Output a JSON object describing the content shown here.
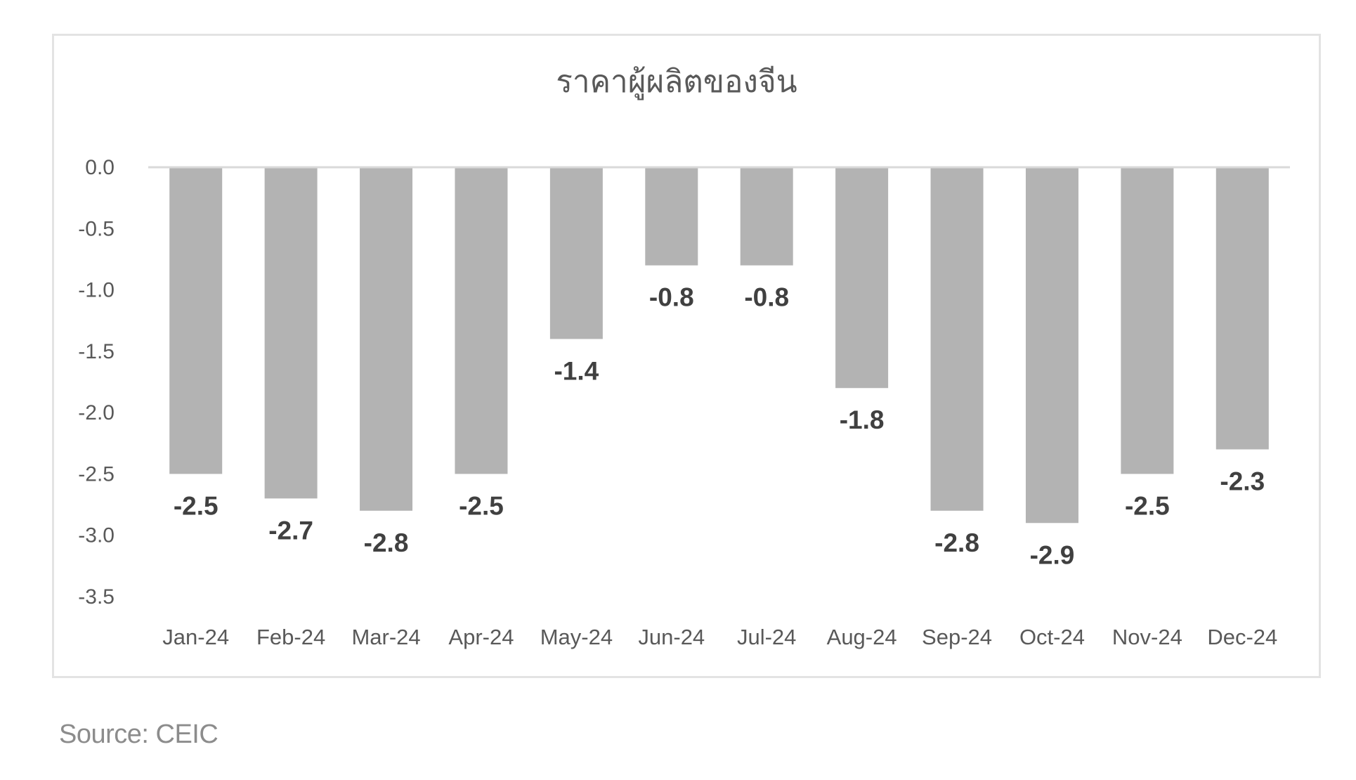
{
  "chart_data": {
    "type": "bar",
    "title": "ราคาผู้ผลิตของจีน",
    "categories": [
      "Jan-24",
      "Feb-24",
      "Mar-24",
      "Apr-24",
      "May-24",
      "Jun-24",
      "Jul-24",
      "Aug-24",
      "Sep-24",
      "Oct-24",
      "Nov-24",
      "Dec-24"
    ],
    "values": [
      -2.5,
      -2.7,
      -2.8,
      -2.5,
      -1.4,
      -0.8,
      -0.8,
      -1.8,
      -2.8,
      -2.9,
      -2.5,
      -2.3
    ],
    "data_labels": [
      "-2.5",
      "-2.7",
      "-2.8",
      "-2.5",
      "-1.4",
      "-0.8",
      "-0.8",
      "-1.8",
      "-2.8",
      "-2.9",
      "-2.5",
      "-2.3"
    ],
    "ylim": [
      -3.5,
      0
    ],
    "yticks": [
      "0.0",
      "-0.5",
      "-1.0",
      "-1.5",
      "-2.0",
      "-2.5",
      "-3.0",
      "-3.5"
    ],
    "xlabel": "",
    "ylabel": "",
    "grid": false,
    "legend": "none",
    "bar_color": "#b3b3b3"
  },
  "source": "Source:  CEIC"
}
